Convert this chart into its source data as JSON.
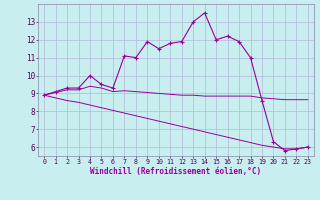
{
  "xlabel": "Windchill (Refroidissement éolien,°C)",
  "background_color": "#c8eef0",
  "grid_color": "#b0b8d8",
  "line_color": "#990099",
  "x_hours": [
    0,
    1,
    2,
    3,
    4,
    5,
    6,
    7,
    8,
    9,
    10,
    11,
    12,
    13,
    14,
    15,
    16,
    17,
    18,
    19,
    20,
    21,
    22,
    23
  ],
  "y_temp": [
    8.9,
    9.1,
    9.3,
    9.3,
    10.0,
    9.5,
    9.3,
    11.1,
    11.0,
    11.9,
    11.5,
    11.8,
    11.9,
    13.0,
    13.5,
    12.0,
    12.2,
    11.9,
    11.0,
    8.6,
    6.3,
    5.8,
    5.9,
    6.0
  ],
  "y_reg1": [
    8.9,
    9.05,
    9.2,
    9.2,
    9.4,
    9.3,
    9.1,
    9.15,
    9.1,
    9.05,
    9.0,
    8.95,
    8.9,
    8.9,
    8.85,
    8.85,
    8.85,
    8.85,
    8.85,
    8.75,
    8.7,
    8.65,
    8.65,
    8.65
  ],
  "y_reg2": [
    8.9,
    8.75,
    8.6,
    8.5,
    8.35,
    8.2,
    8.05,
    7.9,
    7.75,
    7.6,
    7.45,
    7.3,
    7.15,
    7.0,
    6.85,
    6.7,
    6.55,
    6.4,
    6.25,
    6.1,
    6.0,
    5.9,
    5.9,
    6.0
  ],
  "ylim": [
    5.5,
    14.0
  ],
  "yticks": [
    6,
    7,
    8,
    9,
    10,
    11,
    12,
    13
  ],
  "xlim": [
    -0.5,
    23.5
  ]
}
